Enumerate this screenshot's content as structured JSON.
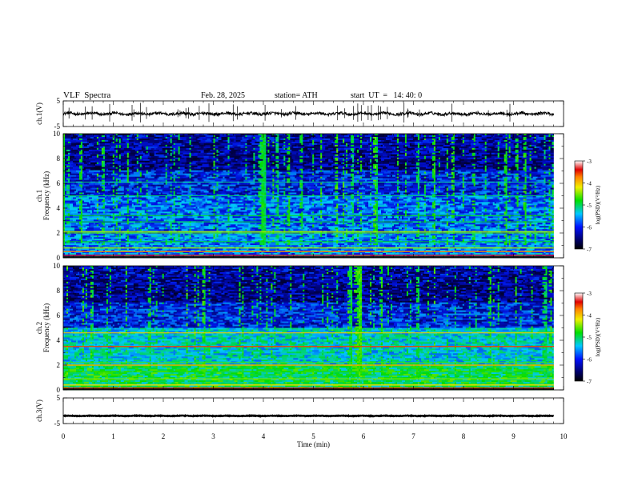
{
  "header": {
    "title": "VLF  Spectra",
    "date": "Feb. 28, 2025",
    "station": "station= ATH",
    "start": "start  UT  =   14: 40: 0"
  },
  "chart_data": [
    {
      "type": "line",
      "panel": "ch1-waveform",
      "ylabel": "ch.1(V)",
      "ylim": [
        -5,
        5
      ],
      "ytick_labels": [
        "5",
        "-5"
      ],
      "x_extent_min": [
        0,
        9.8
      ],
      "baseline_v": 0.0,
      "color": "#000000"
    },
    {
      "type": "heatmap",
      "panel": "ch1-spectrogram",
      "ylabel_lines": [
        "ch.1",
        "Frequency  (kHz)"
      ],
      "ylim": [
        0,
        10
      ],
      "ytick_labels": [
        "0",
        "2",
        "4",
        "6",
        "8",
        "10"
      ],
      "x_extent_min": [
        0,
        9.8
      ],
      "colorbar": {
        "label": "log(PSD)(V²/Hz)",
        "range": [
          -7,
          -3
        ],
        "tick_labels": [
          "-3",
          "-4",
          "-5",
          "-6",
          "-7"
        ]
      }
    },
    {
      "type": "heatmap",
      "panel": "ch2-spectrogram",
      "ylabel_lines": [
        "ch.2",
        "Frequency  (kHz)"
      ],
      "ylim": [
        0,
        10
      ],
      "ytick_labels": [
        "0",
        "2",
        "4",
        "6",
        "8",
        "10"
      ],
      "x_extent_min": [
        0,
        9.8
      ],
      "colorbar": {
        "label": "log(PSD)(V²/Hz)",
        "range": [
          -7,
          -3
        ],
        "tick_labels": [
          "-3",
          "-4",
          "-5",
          "-6",
          "-7"
        ]
      }
    },
    {
      "type": "line",
      "panel": "ch3-waveform",
      "ylabel": "ch.3(V)",
      "ylim": [
        -5,
        5
      ],
      "ytick_labels": [
        "5",
        "-5"
      ],
      "x_extent_min": [
        0,
        9.8
      ],
      "baseline_v": -2.0,
      "color": "#000000"
    }
  ],
  "xaxis": {
    "label": "Time  (min)",
    "range": [
      0,
      10
    ],
    "tick_labels": [
      "0",
      "1",
      "2",
      "3",
      "4",
      "5",
      "6",
      "7",
      "8",
      "9",
      "10"
    ]
  }
}
